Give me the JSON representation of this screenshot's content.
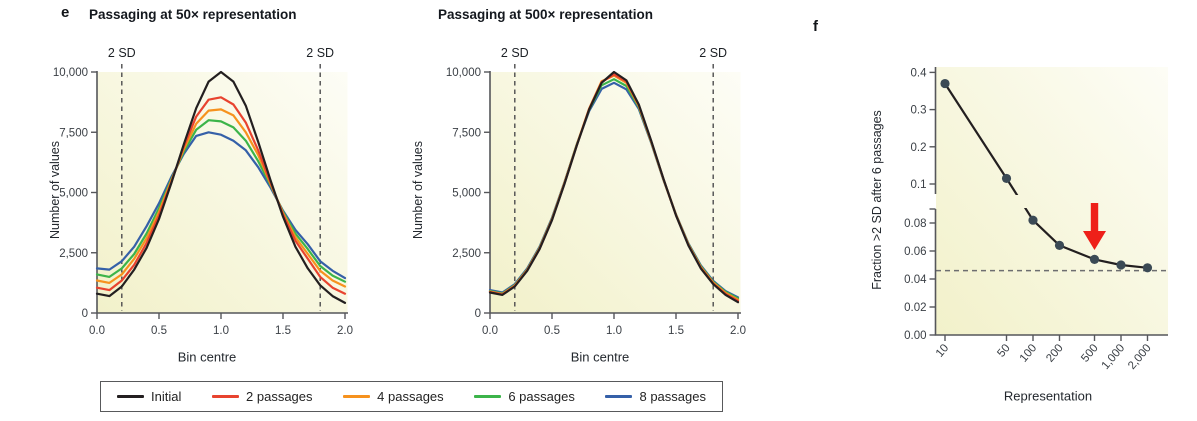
{
  "panels": {
    "e": "e",
    "f": "f"
  },
  "colors": {
    "axis": "#55565a",
    "tick_text": "#3a3f45",
    "text": "#1c2025",
    "dashed": "#4c4c4e",
    "dot": "#3b4a55",
    "arrow": "#ee2019",
    "bg_from": "#f2f1ca",
    "bg_to": "#fdfdf6",
    "legend_border": "#58595b"
  },
  "legend": {
    "items": [
      {
        "label": "Initial",
        "color": "#231f20"
      },
      {
        "label": "2 passages",
        "color": "#e8432f"
      },
      {
        "label": "4 passages",
        "color": "#f6921e"
      },
      {
        "label": "6 passages",
        "color": "#3cb44a"
      },
      {
        "label": "8 passages",
        "color": "#3560a8"
      }
    ]
  },
  "chart_data": [
    {
      "type": "line",
      "title": "Passaging at 50× representation",
      "xlabel": "Bin centre",
      "ylabel": "Number of values",
      "xlim": [
        0,
        2
      ],
      "ylim": [
        0,
        10000
      ],
      "grid": false,
      "x_ticks": [
        {
          "v": 0,
          "label": "0.0"
        },
        {
          "v": 0.5,
          "label": "0.5"
        },
        {
          "v": 1.0,
          "label": "1.0"
        },
        {
          "v": 1.5,
          "label": "1.5"
        },
        {
          "v": 2.0,
          "label": "2.0"
        }
      ],
      "y_ticks": [
        {
          "v": 0,
          "label": "0"
        },
        {
          "v": 2500,
          "label": "2,500"
        },
        {
          "v": 5000,
          "label": "5,000"
        },
        {
          "v": 7500,
          "label": "7,500"
        },
        {
          "v": 10000,
          "label": "10,000"
        }
      ],
      "sd_lines": {
        "label": "2 SD",
        "x": [
          0.2,
          1.8
        ]
      },
      "x": [
        0,
        0.1,
        0.2,
        0.3,
        0.4,
        0.5,
        0.6,
        0.7,
        0.8,
        0.9,
        1.0,
        1.1,
        1.2,
        1.3,
        1.4,
        1.5,
        1.6,
        1.7,
        1.8,
        1.9,
        2.0
      ],
      "series": [
        {
          "name": "Initial",
          "color": "#231f20",
          "values": [
            800,
            700,
            1100,
            1800,
            2700,
            3900,
            5400,
            7000,
            8500,
            9600,
            10000,
            9600,
            8600,
            7100,
            5500,
            4000,
            2750,
            1850,
            1150,
            700,
            420
          ]
        },
        {
          "name": "2 passages",
          "color": "#e8432f",
          "values": [
            1050,
            950,
            1350,
            2000,
            2900,
            4050,
            5450,
            6900,
            8150,
            8850,
            8950,
            8650,
            7900,
            6750,
            5400,
            4100,
            3000,
            2250,
            1500,
            1050,
            800
          ]
        },
        {
          "name": "4 passages",
          "color": "#f6921e",
          "values": [
            1350,
            1250,
            1600,
            2250,
            3100,
            4200,
            5500,
            6800,
            7850,
            8400,
            8450,
            8200,
            7500,
            6550,
            5350,
            4150,
            3150,
            2450,
            1750,
            1350,
            1100
          ]
        },
        {
          "name": "6 passages",
          "color": "#3cb44a",
          "values": [
            1600,
            1500,
            1850,
            2450,
            3300,
            4350,
            5550,
            6700,
            7600,
            8000,
            7950,
            7700,
            7150,
            6300,
            5300,
            4200,
            3300,
            2650,
            1950,
            1550,
            1300
          ]
        },
        {
          "name": "8 passages",
          "color": "#3560a8",
          "values": [
            1850,
            1800,
            2150,
            2750,
            3600,
            4550,
            5650,
            6600,
            7350,
            7500,
            7400,
            7150,
            6750,
            6050,
            5200,
            4250,
            3450,
            2850,
            2150,
            1750,
            1450
          ]
        }
      ]
    },
    {
      "type": "line",
      "title": "Passaging at 500× representation",
      "xlabel": "Bin centre",
      "ylabel": "Number of values",
      "xlim": [
        0,
        2
      ],
      "ylim": [
        0,
        10000
      ],
      "grid": false,
      "x_ticks": [
        {
          "v": 0,
          "label": "0.0"
        },
        {
          "v": 0.5,
          "label": "0.5"
        },
        {
          "v": 1.0,
          "label": "1.0"
        },
        {
          "v": 1.5,
          "label": "1.5"
        },
        {
          "v": 2.0,
          "label": "2.0"
        }
      ],
      "y_ticks": [
        {
          "v": 0,
          "label": "0"
        },
        {
          "v": 2500,
          "label": "2,500"
        },
        {
          "v": 5000,
          "label": "5,000"
        },
        {
          "v": 7500,
          "label": "7,500"
        },
        {
          "v": 10000,
          "label": "10,000"
        }
      ],
      "sd_lines": {
        "label": "2 SD",
        "x": [
          0.2,
          1.8
        ]
      },
      "x": [
        0,
        0.1,
        0.2,
        0.3,
        0.4,
        0.5,
        0.6,
        0.7,
        0.8,
        0.9,
        1.0,
        1.1,
        1.2,
        1.3,
        1.4,
        1.5,
        1.6,
        1.7,
        1.8,
        1.9,
        2.0
      ],
      "series": [
        {
          "name": "Initial",
          "color": "#231f20",
          "values": [
            850,
            750,
            1100,
            1750,
            2650,
            3850,
            5350,
            6950,
            8450,
            9550,
            10000,
            9650,
            8650,
            7150,
            5550,
            4050,
            2800,
            1850,
            1200,
            750,
            450
          ]
        },
        {
          "name": "2 passages",
          "color": "#e8432f",
          "values": [
            870,
            770,
            1120,
            1770,
            2670,
            3870,
            5370,
            6960,
            8470,
            9580,
            9900,
            9600,
            8620,
            7130,
            5540,
            4060,
            2820,
            1880,
            1230,
            790,
            500
          ]
        },
        {
          "name": "4 passages",
          "color": "#f6921e",
          "values": [
            890,
            790,
            1140,
            1790,
            2690,
            3890,
            5390,
            6980,
            8490,
            9620,
            9850,
            9550,
            8590,
            7110,
            5530,
            4070,
            2840,
            1910,
            1260,
            830,
            550
          ]
        },
        {
          "name": "6 passages",
          "color": "#3cb44a",
          "values": [
            910,
            810,
            1160,
            1810,
            2710,
            3910,
            5400,
            6990,
            8440,
            9450,
            9700,
            9420,
            8540,
            7090,
            5520,
            4080,
            2860,
            1940,
            1290,
            870,
            600
          ]
        },
        {
          "name": "8 passages",
          "color": "#3560a8",
          "values": [
            950,
            850,
            1200,
            1850,
            2750,
            3950,
            5420,
            7000,
            8380,
            9300,
            9550,
            9280,
            8470,
            7060,
            5500,
            4090,
            2890,
            1980,
            1330,
            910,
            650
          ]
        }
      ]
    },
    {
      "type": "scatter",
      "title": "",
      "xlabel": "Representation",
      "ylabel": "Fraction >2 SD after 6 passages",
      "x_scale": "log",
      "grid": false,
      "x_ticks": [
        {
          "v": 10,
          "label": "10"
        },
        {
          "v": 50,
          "label": "50"
        },
        {
          "v": 100,
          "label": "100"
        },
        {
          "v": 200,
          "label": "200"
        },
        {
          "v": 500,
          "label": "500"
        },
        {
          "v": 1000,
          "label": "1,000"
        },
        {
          "v": 2000,
          "label": "2,000"
        }
      ],
      "y_axis_break": {
        "upper": {
          "range": [
            0.1,
            0.4
          ],
          "ticks": [
            {
              "v": 0.1,
              "label": "0.1"
            },
            {
              "v": 0.2,
              "label": "0.2"
            },
            {
              "v": 0.3,
              "label": "0.3"
            },
            {
              "v": 0.4,
              "label": "0.4"
            }
          ]
        },
        "lower": {
          "range": [
            0,
            0.09
          ],
          "ticks": [
            {
              "v": 0,
              "label": "0.00"
            },
            {
              "v": 0.02,
              "label": "0.02"
            },
            {
              "v": 0.04,
              "label": "0.04"
            },
            {
              "v": 0.06,
              "label": "0.06"
            },
            {
              "v": 0.08,
              "label": "0.08"
            }
          ]
        }
      },
      "x": [
        10,
        50,
        100,
        200,
        500,
        1000,
        2000
      ],
      "y": [
        0.37,
        0.115,
        0.082,
        0.064,
        0.054,
        0.05,
        0.048
      ],
      "dashed_y": 0.046,
      "arrow_x": 500,
      "line_color": "#231f20"
    }
  ]
}
